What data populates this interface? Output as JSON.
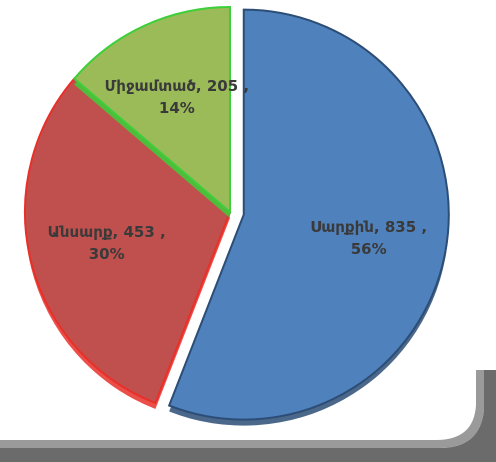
{
  "chart_data": {
    "type": "pie",
    "categories": [
      "Սարքին",
      "Անսարք",
      "Միջամտած"
    ],
    "values": [
      835,
      453,
      205
    ],
    "value_labels": [
      "Սարքին, 835 , 56%",
      "Անսարք, 453 , 30%",
      "Միջամտած, 205 , 14%"
    ],
    "colors": [
      "#4f81bd",
      "#c0504d",
      "#9bbb59"
    ],
    "edge_colors": [
      "#2c4d75",
      "#e8302a",
      "#3ccf3a"
    ],
    "exploded": [
      true,
      false,
      false
    ]
  }
}
